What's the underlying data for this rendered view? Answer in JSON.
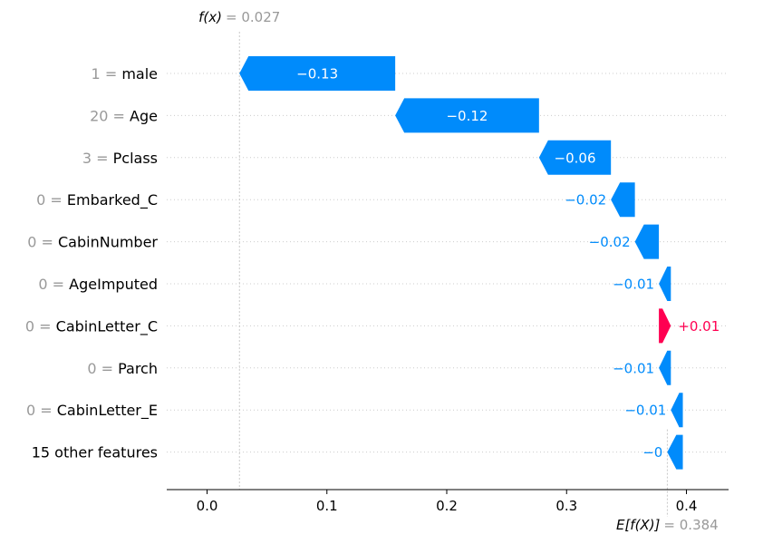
{
  "chart_data": {
    "type": "waterfall",
    "base_value": 0.384,
    "output_value": 0.027,
    "fx_label": "f(x)",
    "fx_value_text": "= 0.027",
    "efx_label": "E[f(X)]",
    "efx_value_text": "= 0.384",
    "xlim": [
      -0.035,
      0.435
    ],
    "xticks": [
      "0.0",
      "0.1",
      "0.2",
      "0.3",
      "0.4"
    ],
    "xtick_values": [
      0.0,
      0.1,
      0.2,
      0.3,
      0.4
    ],
    "colors": {
      "negative": "#008bfb",
      "positive": "#ff0051",
      "muted": "#999999",
      "text": "#000000"
    },
    "features": [
      {
        "value": "1",
        "name": "male",
        "shap": -0.13,
        "label": "−0.13",
        "inside": true
      },
      {
        "value": "20",
        "name": "Age",
        "shap": -0.12,
        "label": "−0.12",
        "inside": true
      },
      {
        "value": "3",
        "name": "Pclass",
        "shap": -0.06,
        "label": "−0.06",
        "inside": true
      },
      {
        "value": "0",
        "name": "Embarked_C",
        "shap": -0.02,
        "label": "−0.02",
        "inside": false
      },
      {
        "value": "0",
        "name": "CabinNumber",
        "shap": -0.02,
        "label": "−0.02",
        "inside": false
      },
      {
        "value": "0",
        "name": "AgeImputed",
        "shap": -0.01,
        "label": "−0.01",
        "inside": false
      },
      {
        "value": "0",
        "name": "CabinLetter_C",
        "shap": 0.01,
        "label": "+0.01",
        "inside": false
      },
      {
        "value": "0",
        "name": "Parch",
        "shap": -0.01,
        "label": "−0.01",
        "inside": false
      },
      {
        "value": "0",
        "name": "CabinLetter_E",
        "shap": -0.01,
        "label": "−0.01",
        "inside": false
      },
      {
        "value": "",
        "name": "15 other features",
        "shap": -0.003,
        "label": "−0",
        "inside": false
      }
    ]
  }
}
